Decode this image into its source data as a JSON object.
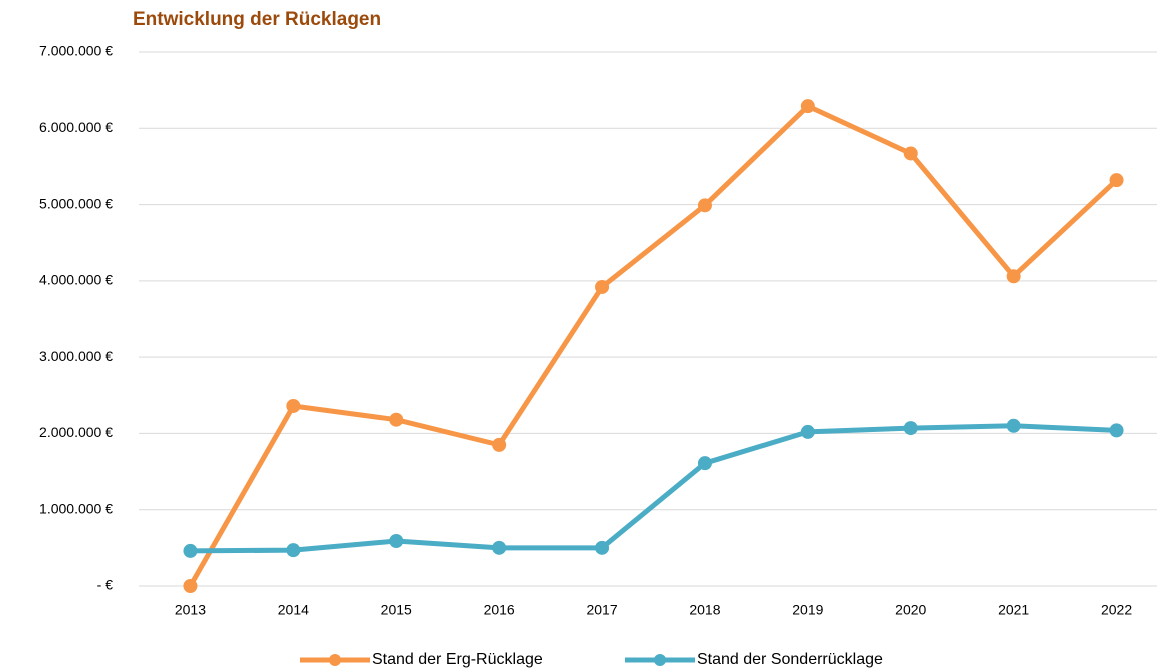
{
  "chart_data": {
    "type": "line",
    "title": "Entwicklung der Rücklagen",
    "categories": [
      "2013",
      "2014",
      "2015",
      "2016",
      "2017",
      "2018",
      "2019",
      "2020",
      "2021",
      "2022"
    ],
    "series": [
      {
        "name": "Stand der Erg-Rücklage",
        "color": "#f79646",
        "values": [
          0,
          2360000,
          2180000,
          1850000,
          3920000,
          4990000,
          6290000,
          5670000,
          4060000,
          5320000
        ]
      },
      {
        "name": "Stand der Sonderrücklage",
        "color": "#4bacc6",
        "values": [
          460000,
          470000,
          590000,
          500000,
          500000,
          1610000,
          2020000,
          2070000,
          2100000,
          2040000
        ]
      }
    ],
    "ylim": [
      0,
      7000000
    ],
    "yticks": [
      {
        "value": 0,
        "label": "-  €"
      },
      {
        "value": 1000000,
        "label": "1.000.000 €"
      },
      {
        "value": 2000000,
        "label": "2.000.000 €"
      },
      {
        "value": 3000000,
        "label": "3.000.000 €"
      },
      {
        "value": 4000000,
        "label": "4.000.000 €"
      },
      {
        "value": 5000000,
        "label": "5.000.000 €"
      },
      {
        "value": 6000000,
        "label": "6.000.000 €"
      },
      {
        "value": 7000000,
        "label": "7.000.000 €"
      }
    ],
    "grid": true,
    "legend": "bottom"
  }
}
